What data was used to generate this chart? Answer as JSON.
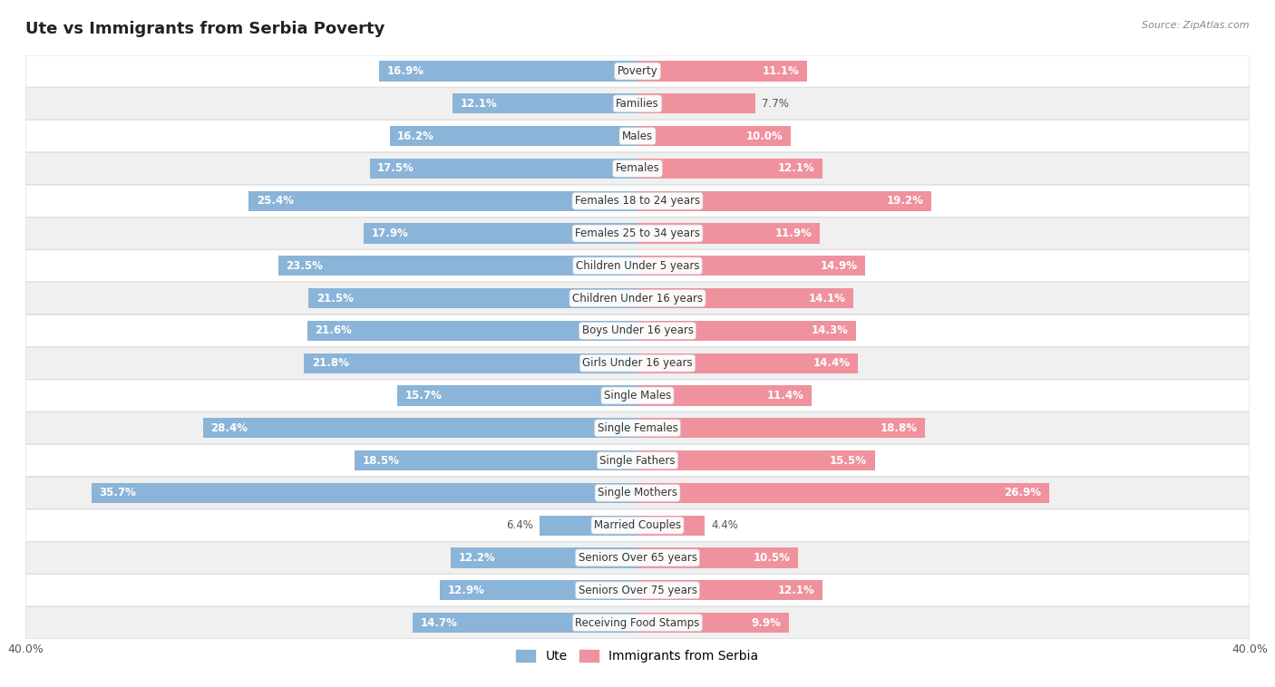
{
  "title": "Ute vs Immigrants from Serbia Poverty",
  "source": "Source: ZipAtlas.com",
  "categories": [
    "Poverty",
    "Families",
    "Males",
    "Females",
    "Females 18 to 24 years",
    "Females 25 to 34 years",
    "Children Under 5 years",
    "Children Under 16 years",
    "Boys Under 16 years",
    "Girls Under 16 years",
    "Single Males",
    "Single Females",
    "Single Fathers",
    "Single Mothers",
    "Married Couples",
    "Seniors Over 65 years",
    "Seniors Over 75 years",
    "Receiving Food Stamps"
  ],
  "ute_values": [
    16.9,
    12.1,
    16.2,
    17.5,
    25.4,
    17.9,
    23.5,
    21.5,
    21.6,
    21.8,
    15.7,
    28.4,
    18.5,
    35.7,
    6.4,
    12.2,
    12.9,
    14.7
  ],
  "serbia_values": [
    11.1,
    7.7,
    10.0,
    12.1,
    19.2,
    11.9,
    14.9,
    14.1,
    14.3,
    14.4,
    11.4,
    18.8,
    15.5,
    26.9,
    4.4,
    10.5,
    12.1,
    9.9
  ],
  "ute_color": "#8ab4d8",
  "serbia_color": "#f0919e",
  "axis_limit": 40.0,
  "background_color": "#ffffff",
  "row_color_light": "#ffffff",
  "row_color_dark": "#f0f0f0",
  "bar_height": 0.62,
  "title_fontsize": 13,
  "label_fontsize": 8.5,
  "tick_fontsize": 9,
  "legend_label_ute": "Ute",
  "legend_label_serbia": "Immigrants from Serbia"
}
